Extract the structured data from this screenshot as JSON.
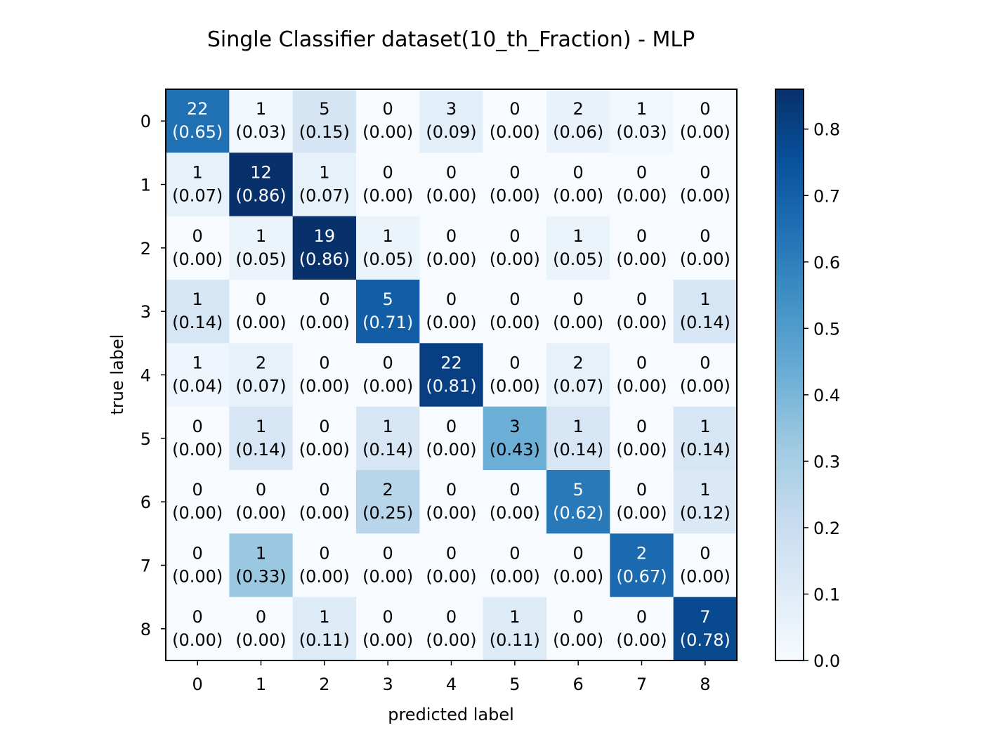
{
  "chart_data": {
    "type": "heatmap",
    "title": "Single Classifier dataset(10_th_Fraction) - MLP",
    "xlabel": "predicted label",
    "ylabel": "true label",
    "x_categories": [
      "0",
      "1",
      "2",
      "3",
      "4",
      "5",
      "6",
      "7",
      "8"
    ],
    "y_categories": [
      "0",
      "1",
      "2",
      "3",
      "4",
      "5",
      "6",
      "7",
      "8"
    ],
    "counts": [
      [
        22,
        1,
        5,
        0,
        3,
        0,
        2,
        1,
        0
      ],
      [
        1,
        12,
        1,
        0,
        0,
        0,
        0,
        0,
        0
      ],
      [
        0,
        1,
        19,
        1,
        0,
        0,
        1,
        0,
        0
      ],
      [
        1,
        0,
        0,
        5,
        0,
        0,
        0,
        0,
        1
      ],
      [
        1,
        2,
        0,
        0,
        22,
        0,
        2,
        0,
        0
      ],
      [
        0,
        1,
        0,
        1,
        0,
        3,
        1,
        0,
        1
      ],
      [
        0,
        0,
        0,
        2,
        0,
        0,
        5,
        0,
        1
      ],
      [
        0,
        1,
        0,
        0,
        0,
        0,
        0,
        2,
        0
      ],
      [
        0,
        0,
        1,
        0,
        0,
        1,
        0,
        0,
        7
      ]
    ],
    "normalized": [
      [
        "0.65",
        "0.03",
        "0.15",
        "0.00",
        "0.09",
        "0.00",
        "0.06",
        "0.03",
        "0.00"
      ],
      [
        "0.07",
        "0.86",
        "0.07",
        "0.00",
        "0.00",
        "0.00",
        "0.00",
        "0.00",
        "0.00"
      ],
      [
        "0.00",
        "0.05",
        "0.86",
        "0.05",
        "0.00",
        "0.00",
        "0.05",
        "0.00",
        "0.00"
      ],
      [
        "0.14",
        "0.00",
        "0.00",
        "0.71",
        "0.00",
        "0.00",
        "0.00",
        "0.00",
        "0.14"
      ],
      [
        "0.04",
        "0.07",
        "0.00",
        "0.00",
        "0.81",
        "0.00",
        "0.07",
        "0.00",
        "0.00"
      ],
      [
        "0.00",
        "0.14",
        "0.00",
        "0.14",
        "0.00",
        "0.43",
        "0.14",
        "0.00",
        "0.14"
      ],
      [
        "0.00",
        "0.00",
        "0.00",
        "0.25",
        "0.00",
        "0.00",
        "0.62",
        "0.00",
        "0.12"
      ],
      [
        "0.00",
        "0.33",
        "0.00",
        "0.00",
        "0.00",
        "0.00",
        "0.00",
        "0.67",
        "0.00"
      ],
      [
        "0.00",
        "0.00",
        "0.11",
        "0.00",
        "0.00",
        "0.11",
        "0.00",
        "0.00",
        "0.78"
      ]
    ],
    "colormap": "Blues",
    "colorbar": {
      "range": [
        0.0,
        0.86
      ],
      "ticks": [
        "0.0",
        "0.1",
        "0.2",
        "0.3",
        "0.4",
        "0.5",
        "0.6",
        "0.7",
        "0.8"
      ]
    },
    "grid": false,
    "legend": "none"
  }
}
